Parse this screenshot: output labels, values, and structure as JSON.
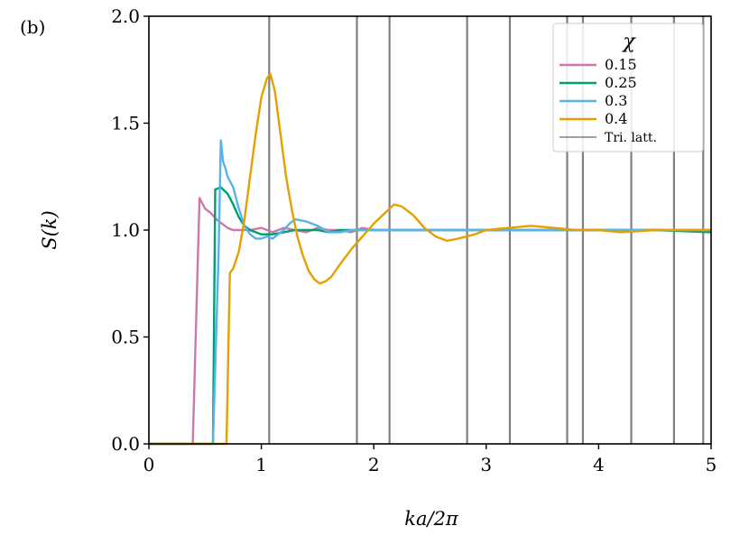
{
  "panel_label": "(b)",
  "chart_data": {
    "type": "line",
    "xlabel": "ka/2π",
    "ylabel": "S(k)",
    "xlim": [
      0,
      5
    ],
    "ylim": [
      0,
      2.0
    ],
    "x_ticks": [
      "0",
      "1",
      "2",
      "3",
      "4",
      "5"
    ],
    "y_ticks": [
      "0.0",
      "0.5",
      "1.0",
      "1.5",
      "2.0"
    ],
    "grid": false,
    "legend": {
      "title": "χ",
      "placement": "top-right"
    },
    "vertical_lines": {
      "name": "Tri. latt.",
      "color": "#808080",
      "x": [
        1.07,
        1.85,
        2.14,
        2.83,
        3.21,
        3.72,
        3.86,
        4.29,
        4.67,
        4.93
      ]
    },
    "series": [
      {
        "name": "0.15",
        "color": "#cc79a7",
        "points": [
          [
            0,
            0
          ],
          [
            0.39,
            0
          ],
          [
            0.45,
            1.15
          ],
          [
            0.5,
            1.1
          ],
          [
            0.55,
            1.08
          ],
          [
            0.6,
            1.05
          ],
          [
            0.65,
            1.03
          ],
          [
            0.7,
            1.01
          ],
          [
            0.75,
            1.0
          ],
          [
            0.8,
            1.0
          ],
          [
            0.9,
            1.0
          ],
          [
            1.0,
            1.01
          ],
          [
            1.1,
            0.99
          ],
          [
            1.2,
            1.01
          ],
          [
            1.3,
            1.0
          ],
          [
            1.4,
            0.99
          ],
          [
            1.5,
            1.01
          ],
          [
            1.6,
            1.0
          ],
          [
            1.7,
            1.0
          ],
          [
            1.8,
            0.99
          ],
          [
            1.9,
            1.01
          ],
          [
            2.0,
            1.0
          ],
          [
            2.2,
            1.0
          ],
          [
            2.4,
            1.0
          ],
          [
            2.6,
            1.0
          ],
          [
            2.8,
            1.0
          ],
          [
            3.0,
            1.0
          ],
          [
            3.5,
            1.0
          ],
          [
            4.0,
            1.0
          ],
          [
            4.5,
            1.0
          ],
          [
            5.0,
            1.0
          ]
        ]
      },
      {
        "name": "0.25",
        "color": "#009e73",
        "points": [
          [
            0,
            0
          ],
          [
            0.57,
            0
          ],
          [
            0.59,
            1.19
          ],
          [
            0.64,
            1.2
          ],
          [
            0.7,
            1.17
          ],
          [
            0.75,
            1.12
          ],
          [
            0.8,
            1.06
          ],
          [
            0.85,
            1.02
          ],
          [
            0.9,
            1.0
          ],
          [
            0.95,
            0.99
          ],
          [
            1.0,
            0.98
          ],
          [
            1.1,
            0.98
          ],
          [
            1.2,
            0.99
          ],
          [
            1.3,
            1.0
          ],
          [
            1.4,
            1.0
          ],
          [
            1.5,
            1.0
          ],
          [
            1.6,
            0.99
          ],
          [
            1.7,
            1.0
          ],
          [
            1.8,
            1.0
          ],
          [
            1.9,
            1.0
          ],
          [
            2.0,
            1.0
          ],
          [
            2.2,
            1.0
          ],
          [
            2.4,
            1.0
          ],
          [
            2.6,
            1.0
          ],
          [
            2.8,
            1.0
          ],
          [
            3.0,
            1.0
          ],
          [
            3.5,
            1.0
          ],
          [
            4.0,
            1.0
          ],
          [
            4.5,
            1.0
          ],
          [
            5.0,
            0.99
          ]
        ]
      },
      {
        "name": "0.3",
        "color": "#56b4e9",
        "points": [
          [
            0,
            0
          ],
          [
            0.55,
            0
          ],
          [
            0.57,
            0.0
          ],
          [
            0.62,
            0.9
          ],
          [
            0.64,
            1.42
          ],
          [
            0.66,
            1.32
          ],
          [
            0.68,
            1.29
          ],
          [
            0.7,
            1.25
          ],
          [
            0.75,
            1.2
          ],
          [
            0.8,
            1.1
          ],
          [
            0.85,
            1.02
          ],
          [
            0.9,
            0.98
          ],
          [
            0.95,
            0.96
          ],
          [
            1.0,
            0.96
          ],
          [
            1.05,
            0.97
          ],
          [
            1.1,
            0.96
          ],
          [
            1.15,
            0.98
          ],
          [
            1.2,
            1.0
          ],
          [
            1.25,
            1.03
          ],
          [
            1.3,
            1.05
          ],
          [
            1.4,
            1.04
          ],
          [
            1.5,
            1.02
          ],
          [
            1.6,
            0.99
          ],
          [
            1.7,
            0.99
          ],
          [
            1.8,
            1.0
          ],
          [
            2.0,
            1.0
          ],
          [
            2.2,
            1.0
          ],
          [
            2.4,
            1.0
          ],
          [
            2.6,
            1.0
          ],
          [
            2.8,
            1.0
          ],
          [
            3.0,
            1.0
          ],
          [
            3.5,
            1.0
          ],
          [
            4.0,
            1.0
          ],
          [
            4.5,
            1.0
          ],
          [
            5.0,
            1.0
          ]
        ]
      },
      {
        "name": "0.4",
        "color": "#e69f00",
        "points": [
          [
            0,
            0
          ],
          [
            0.69,
            0
          ],
          [
            0.72,
            0.8
          ],
          [
            0.75,
            0.82
          ],
          [
            0.8,
            0.9
          ],
          [
            0.85,
            1.05
          ],
          [
            0.9,
            1.25
          ],
          [
            0.95,
            1.45
          ],
          [
            1.0,
            1.62
          ],
          [
            1.05,
            1.71
          ],
          [
            1.08,
            1.73
          ],
          [
            1.12,
            1.65
          ],
          [
            1.17,
            1.45
          ],
          [
            1.22,
            1.25
          ],
          [
            1.27,
            1.1
          ],
          [
            1.32,
            0.97
          ],
          [
            1.37,
            0.88
          ],
          [
            1.42,
            0.81
          ],
          [
            1.47,
            0.77
          ],
          [
            1.52,
            0.75
          ],
          [
            1.57,
            0.76
          ],
          [
            1.62,
            0.78
          ],
          [
            1.7,
            0.84
          ],
          [
            1.8,
            0.91
          ],
          [
            1.9,
            0.97
          ],
          [
            2.0,
            1.03
          ],
          [
            2.1,
            1.08
          ],
          [
            2.18,
            1.12
          ],
          [
            2.25,
            1.11
          ],
          [
            2.35,
            1.07
          ],
          [
            2.45,
            1.01
          ],
          [
            2.55,
            0.97
          ],
          [
            2.65,
            0.95
          ],
          [
            2.75,
            0.96
          ],
          [
            2.9,
            0.98
          ],
          [
            3.0,
            1.0
          ],
          [
            3.2,
            1.01
          ],
          [
            3.4,
            1.02
          ],
          [
            3.6,
            1.01
          ],
          [
            3.8,
            1.0
          ],
          [
            4.0,
            1.0
          ],
          [
            4.2,
            0.99
          ],
          [
            4.5,
            1.0
          ],
          [
            4.8,
            1.0
          ],
          [
            5.0,
            1.0
          ]
        ]
      }
    ]
  }
}
